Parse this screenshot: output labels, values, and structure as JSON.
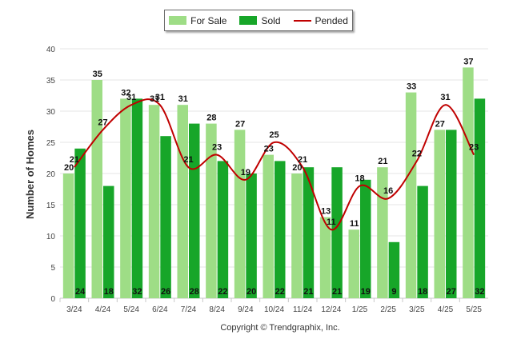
{
  "chart_data": {
    "type": "bar",
    "title": "",
    "xlabel": "",
    "ylabel": "Number of Homes",
    "ylim": [
      0,
      40
    ],
    "yticks": [
      0,
      5,
      10,
      15,
      20,
      25,
      30,
      35,
      40
    ],
    "categories": [
      "3/24",
      "4/24",
      "5/24",
      "6/24",
      "7/24",
      "8/24",
      "9/24",
      "10/24",
      "11/24",
      "12/24",
      "1/25",
      "2/25",
      "3/25",
      "4/25",
      "5/25"
    ],
    "series": [
      {
        "name": "For Sale",
        "kind": "bar",
        "color": "#9edd86",
        "values": [
          20,
          35,
          32,
          31,
          31,
          28,
          27,
          23,
          20,
          13,
          11,
          21,
          33,
          27,
          37
        ]
      },
      {
        "name": "Sold",
        "kind": "bar",
        "color": "#17a629",
        "values": [
          24,
          18,
          32,
          26,
          28,
          22,
          20,
          22,
          21,
          21,
          19,
          9,
          18,
          27,
          32
        ]
      },
      {
        "name": "Pended",
        "kind": "line",
        "color": "#c00000",
        "values": [
          21,
          27,
          31,
          31,
          21,
          23,
          19,
          25,
          21,
          11,
          18,
          16,
          22,
          31,
          23
        ]
      }
    ],
    "grid": true,
    "legend": "top-center",
    "footer": "Copyright © Trendgraphix, Inc."
  }
}
